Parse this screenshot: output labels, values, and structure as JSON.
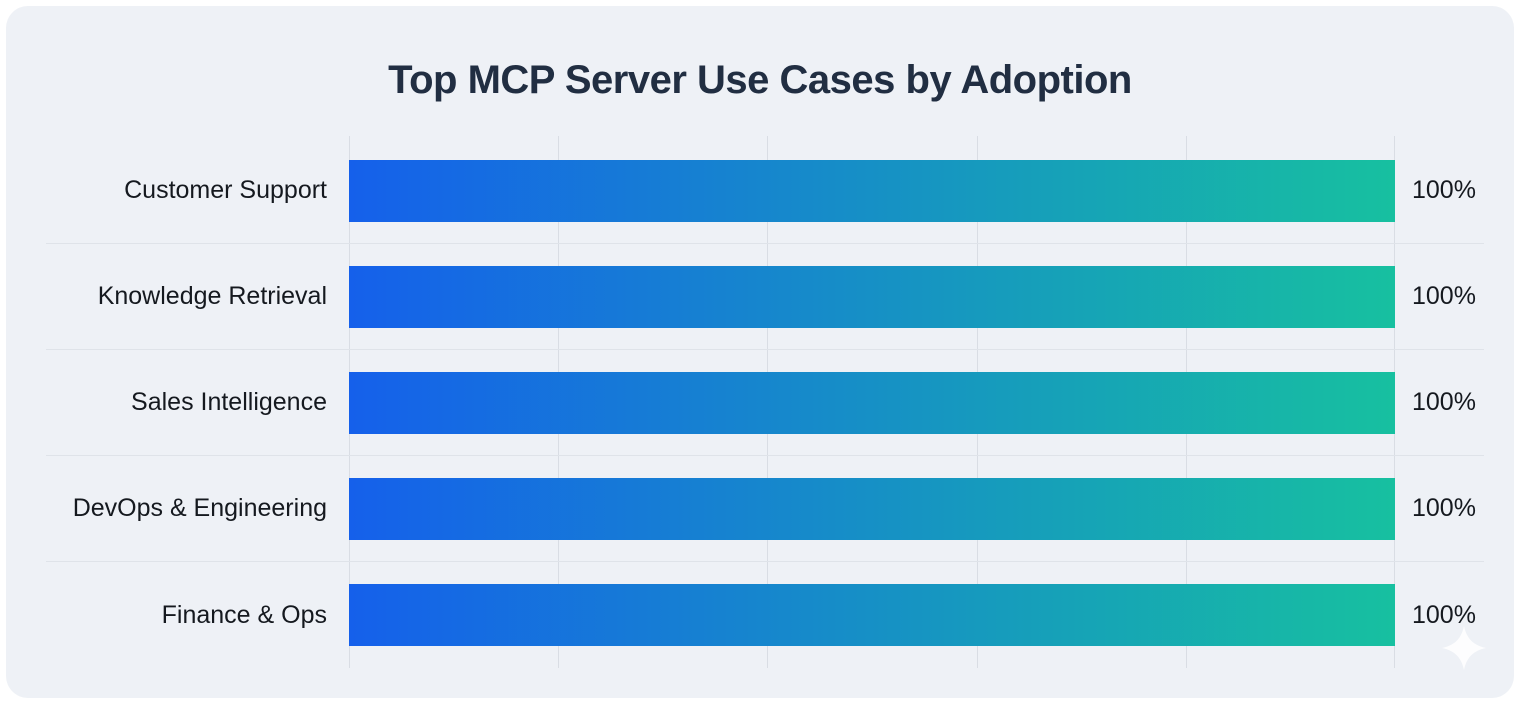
{
  "chart_data": {
    "type": "bar",
    "orientation": "horizontal",
    "title": "Top MCP Server Use Cases by Adoption",
    "categories": [
      "Customer Support",
      "Knowledge Retrieval",
      "Sales Intelligence",
      "DevOps & Engineering",
      "Finance & Ops"
    ],
    "values": [
      100,
      100,
      100,
      100,
      100
    ],
    "value_labels": [
      "100%",
      "100%",
      "100%",
      "100%",
      "100%"
    ],
    "xlabel": "",
    "ylabel": "",
    "xlim": [
      0,
      100
    ],
    "gridlines_percent": [
      0,
      20,
      40,
      60,
      80,
      100
    ],
    "grid": true,
    "legend": false,
    "bar_gradient": {
      "start": "#1560eb",
      "end": "#17c0a0"
    }
  },
  "icons": {
    "watermark": "sparkle-icon"
  },
  "colors": {
    "page_background": "#ffffff",
    "card_background": "#eef1f6",
    "title_text": "#212e42",
    "label_text": "#15191f",
    "gridline": "#d9dde4",
    "row_separator": "#dfe3e9"
  }
}
